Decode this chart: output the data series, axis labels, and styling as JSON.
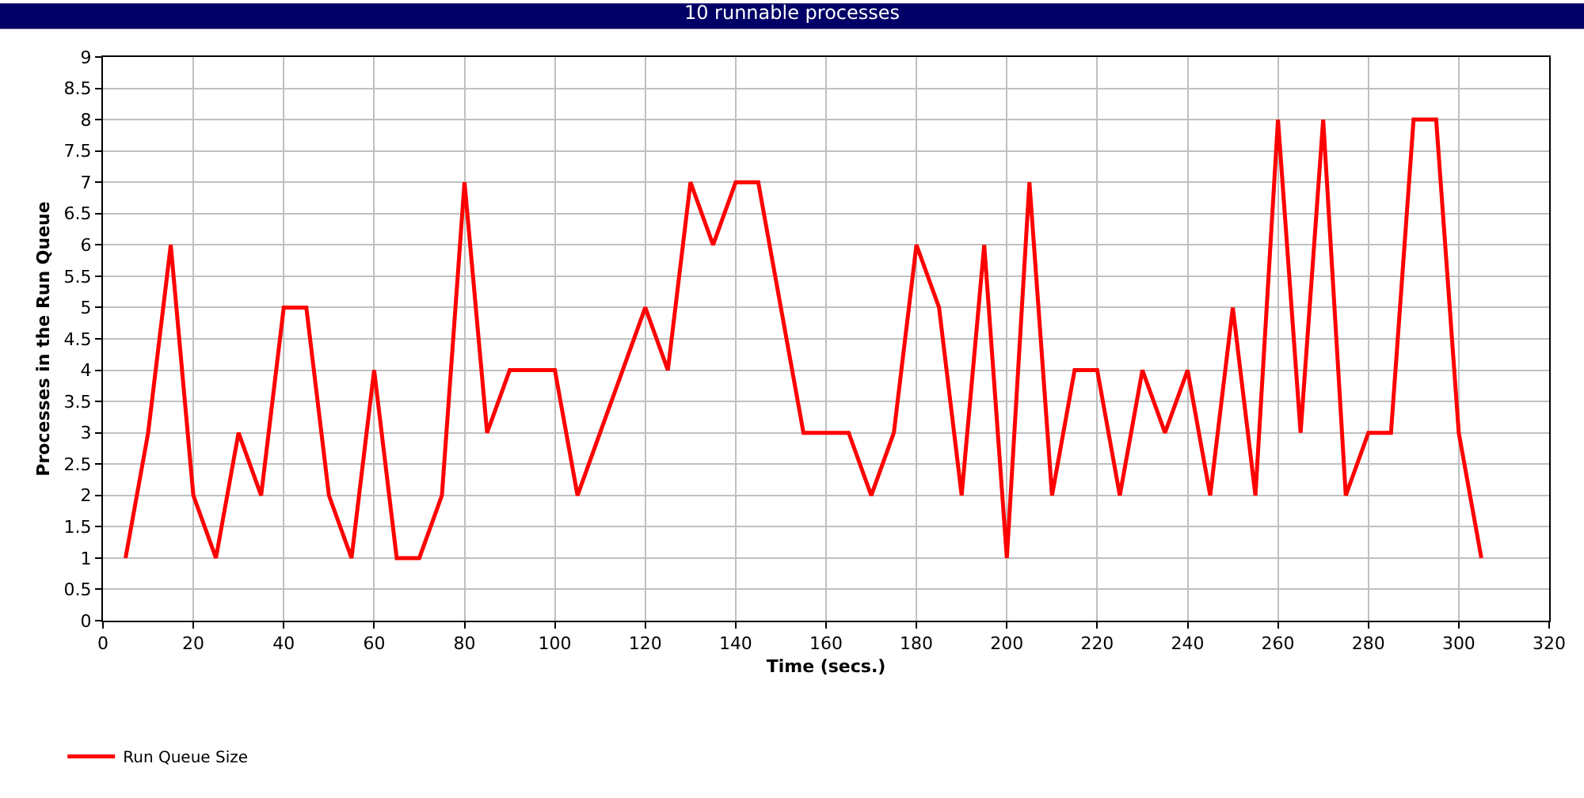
{
  "chart_data": {
    "type": "line",
    "title": "10 runnable processes",
    "xlabel": "Time (secs.)",
    "ylabel": "Processes in the Run Queue",
    "x": [
      5,
      10,
      15,
      20,
      25,
      30,
      35,
      40,
      45,
      50,
      55,
      60,
      65,
      70,
      75,
      80,
      85,
      90,
      95,
      100,
      105,
      110,
      115,
      120,
      125,
      130,
      135,
      140,
      145,
      150,
      155,
      160,
      165,
      170,
      175,
      180,
      185,
      190,
      195,
      200,
      205,
      210,
      215,
      220,
      225,
      230,
      235,
      240,
      245,
      250,
      255,
      260,
      265,
      270,
      275,
      280,
      285,
      290,
      295,
      300,
      305
    ],
    "series": [
      {
        "name": "Run Queue Size",
        "color": "#ff0000",
        "values": [
          1,
          3,
          6,
          2,
          1,
          3,
          2,
          5,
          5,
          2,
          1,
          4,
          1,
          1,
          2,
          7,
          3,
          4,
          4,
          4,
          2,
          3,
          4,
          5,
          4,
          7,
          6,
          7,
          7,
          5,
          3,
          3,
          3,
          2,
          3,
          6,
          5,
          2,
          6,
          1,
          7,
          2,
          4,
          4,
          2,
          4,
          3,
          4,
          2,
          5,
          2,
          8,
          3,
          8,
          2,
          3,
          3,
          8,
          8,
          3,
          1
        ]
      }
    ],
    "xlim": [
      0,
      320
    ],
    "xticks": [
      0,
      20,
      40,
      60,
      80,
      100,
      120,
      140,
      160,
      180,
      200,
      220,
      240,
      260,
      280,
      300,
      320
    ],
    "ylim": [
      0,
      9
    ],
    "yticks": [
      0,
      0.5,
      1,
      1.5,
      2,
      2.5,
      3,
      3.5,
      4,
      4.5,
      5,
      5.5,
      6,
      6.5,
      7,
      7.5,
      8,
      8.5,
      9
    ],
    "grid": true,
    "legend": "bottom left",
    "marker": "none",
    "line_style": "solid"
  }
}
